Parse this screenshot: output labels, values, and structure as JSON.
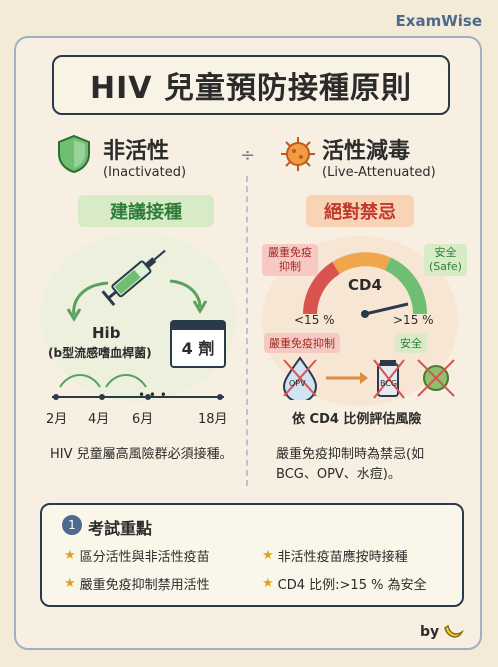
{
  "brand": "ExamWise",
  "title": "HIV 兒童預防接種原則",
  "divider_symbol": "÷",
  "inactivated": {
    "title_zh": "非活性",
    "title_en": "(Inactivated)",
    "recommend_pill": "建議接種",
    "vaccine_name": "Hib",
    "vaccine_desc": "(b型流感嗜血桿菌)",
    "doses_badge": "4 劑",
    "timeline": [
      "2月",
      "4月",
      "6月",
      "18月"
    ],
    "timeline_ellipsis": "• • •",
    "note": "HIV 兒童屬高風險群必須接種。"
  },
  "attenuated": {
    "title_zh": "活性減毒",
    "title_en": "(Live-Attenuated)",
    "contra_pill": "絕對禁忌",
    "gauge_center": "CD4",
    "left_tag": "嚴重免疫抑制",
    "right_tag_zh": "安全",
    "right_tag_en": "(Safe)",
    "left_threshold": "<15 %",
    "right_threshold": ">15 %",
    "left_label": "嚴重免疫抑制",
    "right_label": "安全",
    "bottle_label": "BCG",
    "drop_label": "OPV",
    "evaluate": "依 CD4 比例評估風險",
    "note": "嚴重免疫抑制時為禁忌(如 BCG、OPV、水痘)。"
  },
  "key_points": {
    "number": "1",
    "title": "考試重點",
    "items": [
      "區分活性與非活性疫苗",
      "非活性疫苗應按時接種",
      "嚴重免疫抑制禁用活性",
      "CD4 比例:>15 % 為安全"
    ]
  },
  "footer_by": "by",
  "colors": {
    "accent": "#4d6a8c",
    "green": "#2f7d3a",
    "red": "#c0392b",
    "orange": "#e08a3a",
    "star": "#e0a21b"
  },
  "icons": [
    "shield-icon",
    "virus-icon",
    "syringe-icon",
    "calendar-icon",
    "gauge-icon",
    "droplet-icon",
    "vial-icon",
    "banana-icon"
  ]
}
